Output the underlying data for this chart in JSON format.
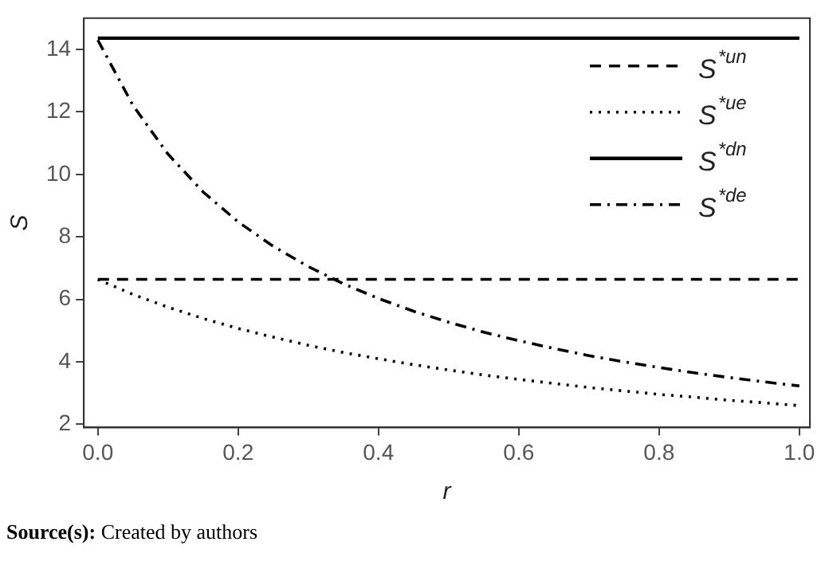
{
  "chart_data": {
    "type": "line",
    "xlabel": "r",
    "ylabel": "S",
    "x": [
      0,
      0.05,
      0.1,
      0.15,
      0.2,
      0.25,
      0.3,
      0.35,
      0.4,
      0.45,
      0.5,
      0.55,
      0.6,
      0.65,
      0.7,
      0.75,
      0.8,
      0.85,
      0.9,
      0.95,
      1
    ],
    "xlim": [
      -0.02,
      1.015
    ],
    "xticks": [
      {
        "value": 0,
        "label": "0.0"
      },
      0.2,
      0.4,
      0.6,
      0.8,
      {
        "value": 1,
        "label": "1.0"
      }
    ],
    "ylim": [
      1.9,
      15
    ],
    "yticks": [
      2,
      4,
      6,
      8,
      10,
      12,
      14
    ],
    "grid": false,
    "legend": "top right",
    "marker": "none",
    "series": [
      {
        "name": "S$^{*un}$",
        "color": "#000000",
        "line_style": "dashed",
        "values": [
          6.64,
          6.64,
          6.64,
          6.64,
          6.64,
          6.64,
          6.64,
          6.64,
          6.64,
          6.64,
          6.64,
          6.64,
          6.64,
          6.64,
          6.64,
          6.64,
          6.64,
          6.64,
          6.64,
          6.64,
          6.64
        ]
      },
      {
        "name": "S$^{*ue}$",
        "color": "#000000",
        "line_style": "dotted",
        "values": [
          6.64,
          6.16,
          5.75,
          5.39,
          5.07,
          4.79,
          4.53,
          4.3,
          4.1,
          3.91,
          3.74,
          3.58,
          3.44,
          3.31,
          3.18,
          3.07,
          2.96,
          2.87,
          2.77,
          2.69,
          2.6
        ]
      },
      {
        "name": "S$^{*dn}$",
        "color": "#000000",
        "line_style": "solid",
        "values": [
          14.36,
          14.36,
          14.36,
          14.36,
          14.36,
          14.36,
          14.36,
          14.36,
          14.36,
          14.36,
          14.36,
          14.36,
          14.36,
          14.36,
          14.36,
          14.36,
          14.36,
          14.36,
          14.36,
          14.36,
          14.36
        ]
      },
      {
        "name": "S$^{*de}$",
        "color": "#000000",
        "line_style": "dashdot",
        "values": [
          14.3,
          12.21,
          10.65,
          9.44,
          8.48,
          7.7,
          7.05,
          6.5,
          6.03,
          5.62,
          5.27,
          4.95,
          4.68,
          4.43,
          4.2,
          4.0,
          3.82,
          3.65,
          3.5,
          3.36,
          3.23
        ]
      }
    ],
    "annotations": [
      "Source(s): Created by authors"
    ]
  }
}
